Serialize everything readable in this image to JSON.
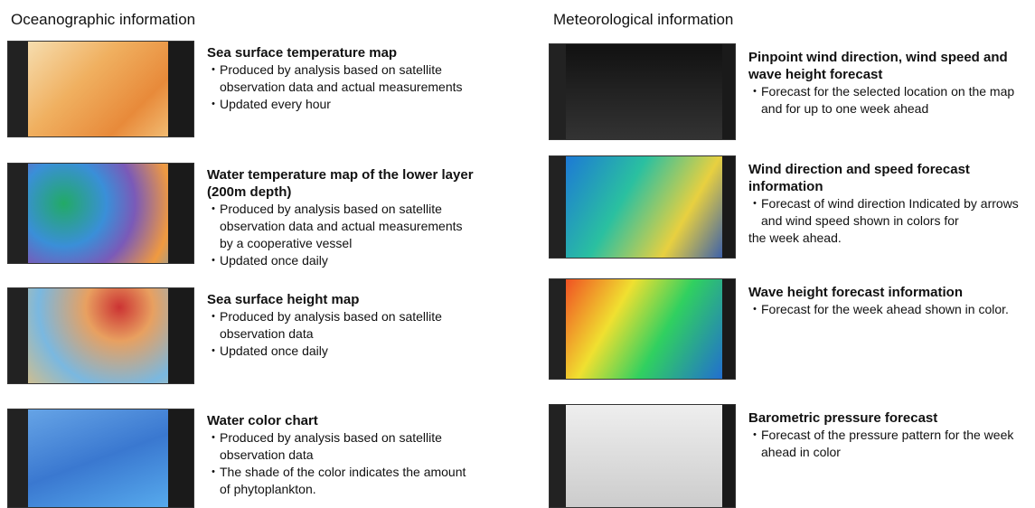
{
  "sections": [
    {
      "title": "Oceanographic information",
      "items": [
        {
          "title": "Sea surface temperature map",
          "bullets": [
            "・Produced by analysis based on satellite observation data and actual measurements",
            "・Updated every hour"
          ]
        },
        {
          "title": "Water temperature map of the lower layer (200m depth)",
          "bullets": [
            "・Produced by analysis based on satellite observation data and actual measurements by a cooperative vessel",
            "・Updated once daily"
          ]
        },
        {
          "title": "Sea surface height map",
          "bullets": [
            "・Produced by analysis based on satellite observation data",
            "・Updated once daily"
          ]
        },
        {
          "title": "Water color chart",
          "bullets": [
            "・Produced by analysis based on satellite observation data",
            "・The shade of the color indicates the amount of phytoplankton."
          ]
        }
      ]
    },
    {
      "title": "Meteorological information",
      "items": [
        {
          "title": "Pinpoint wind direction, wind speed and wave height forecast",
          "bullets": [
            "・Forecast for  the selected location on the map and for up to one week ahead"
          ]
        },
        {
          "title": "Wind direction and speed forecast information",
          "bullets": [
            "・Forecast of wind direction Indicated by arrows and wind speed shown in colors for",
            "the week ahead."
          ]
        },
        {
          "title": "Wave height forecast information",
          "bullets": [
            "・Forecast for the week ahead shown in color."
          ]
        },
        {
          "title": "Barometric pressure forecast",
          "bullets": [
            "・Forecast of the pressure pattern for the week ahead in color"
          ]
        }
      ]
    }
  ]
}
